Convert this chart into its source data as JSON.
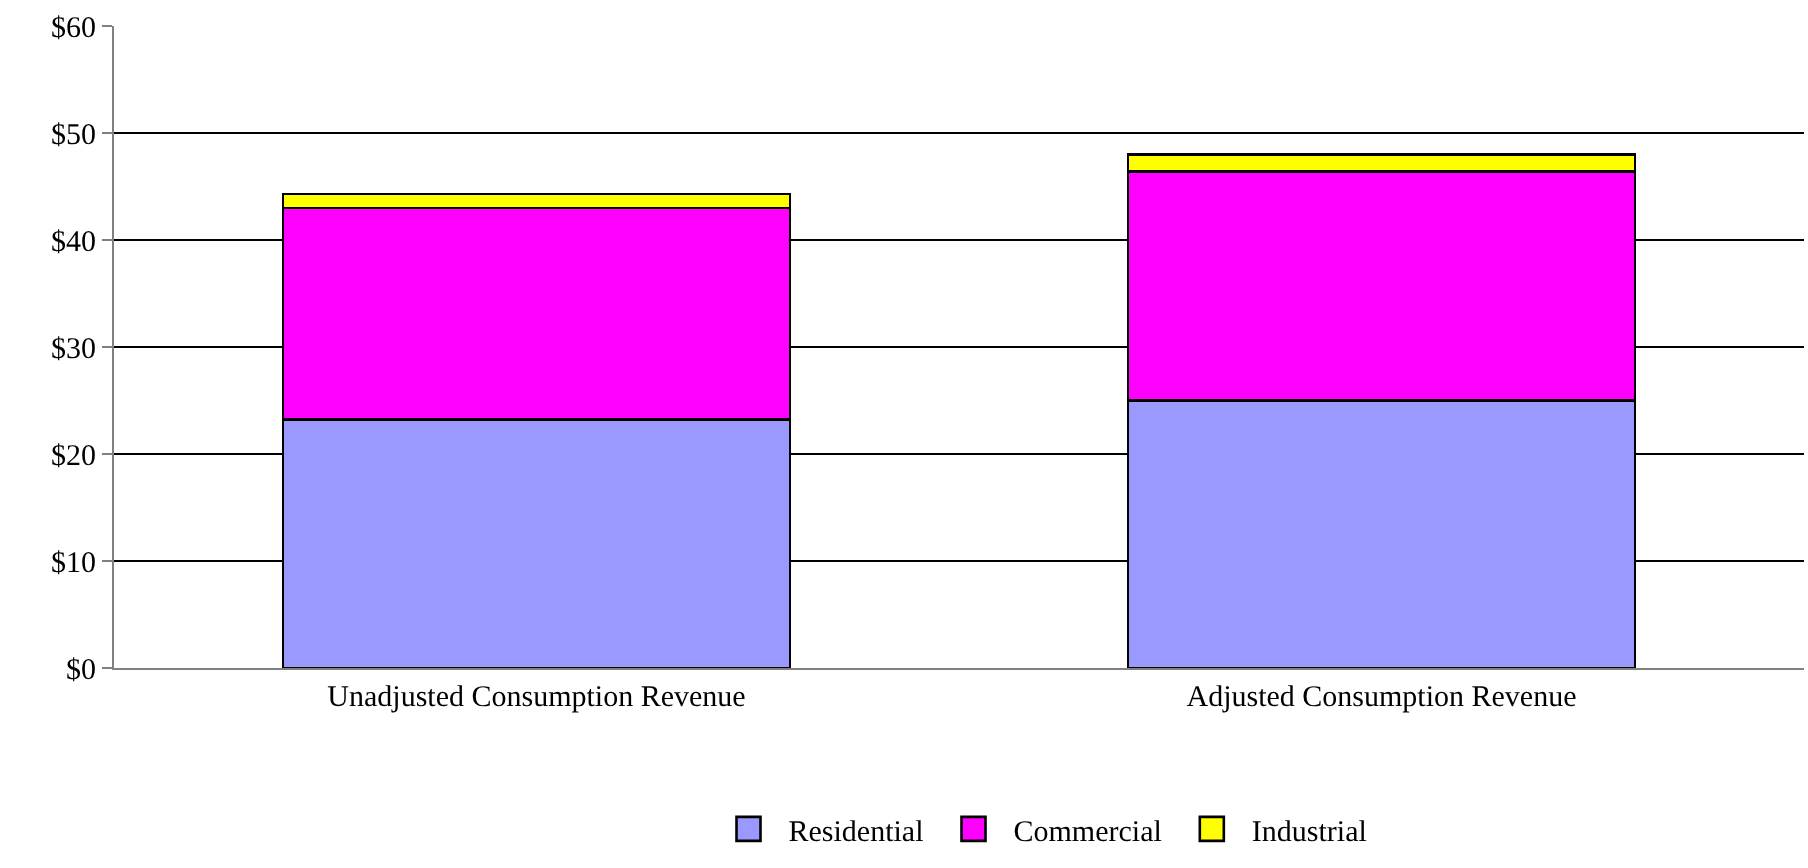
{
  "chart_data": {
    "type": "bar",
    "stacked": true,
    "categories": [
      "Unadjusted Consumption Revenue",
      "Adjusted Consumption Revenue"
    ],
    "series": [
      {
        "name": "Residential",
        "color": "#9999ff",
        "values": [
          23.2,
          25.0
        ]
      },
      {
        "name": "Commercial",
        "color": "#ff00ff",
        "values": [
          19.8,
          21.4
        ]
      },
      {
        "name": "Industrial",
        "color": "#ffff00",
        "values": [
          1.3,
          1.6
        ]
      }
    ],
    "ylim": [
      0,
      60
    ],
    "yticks": [
      {
        "value": 0,
        "label": "$0"
      },
      {
        "value": 10,
        "label": "$10"
      },
      {
        "value": 20,
        "label": "$20"
      },
      {
        "value": 30,
        "label": "$30"
      },
      {
        "value": 40,
        "label": "$40"
      },
      {
        "value": 50,
        "label": "$50"
      },
      {
        "value": 60,
        "label": "$60"
      }
    ],
    "grid": "y",
    "legend": "bottom"
  }
}
